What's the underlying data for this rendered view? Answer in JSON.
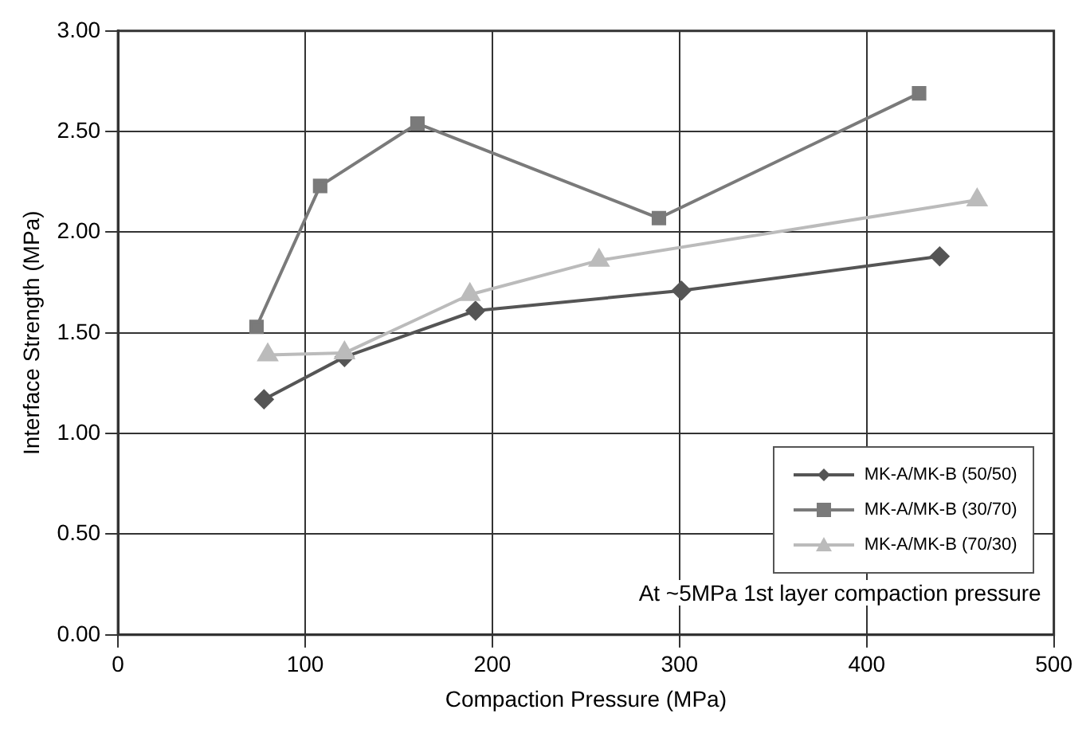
{
  "chart_data": {
    "type": "line",
    "xlabel": "Compaction Pressure (MPa)",
    "ylabel": "Interface Strength (MPa)",
    "xlim": [
      0,
      500
    ],
    "xticks": [
      0,
      100,
      200,
      300,
      400,
      500
    ],
    "ylim": [
      0,
      3
    ],
    "yticks": [
      {
        "value": 0,
        "label": "0.00"
      },
      {
        "value": 0.5,
        "label": "0.50"
      },
      {
        "value": 1,
        "label": "1.00"
      },
      {
        "value": 1.5,
        "label": "1.50"
      },
      {
        "value": 2,
        "label": "2.00"
      },
      {
        "value": 2.5,
        "label": "2.50"
      },
      {
        "value": 3,
        "label": "3.00"
      }
    ],
    "grid": true,
    "legend": "bottom right",
    "line_style": "solid",
    "annotations": [
      "At ~5MPa 1st layer compaction pressure"
    ],
    "series": [
      {
        "name": "MK-A/MK-B (50/50)",
        "color": "#555555",
        "marker": "diamond",
        "x": [
          78,
          121,
          191,
          301,
          439
        ],
        "values": [
          1.17,
          1.38,
          1.61,
          1.71,
          1.88
        ]
      },
      {
        "name": "MK-A/MK-B (30/70)",
        "color": "#7a7a7a",
        "marker": "square",
        "x": [
          74,
          108,
          160,
          289,
          428
        ],
        "values": [
          1.53,
          2.23,
          2.54,
          2.07,
          2.69
        ]
      },
      {
        "name": "MK-A/MK-B (70/30)",
        "color": "#bbbbbb",
        "marker": "triangle",
        "x": [
          80,
          121,
          188,
          257,
          459
        ],
        "values": [
          1.39,
          1.4,
          1.69,
          1.86,
          2.16
        ]
      }
    ]
  }
}
